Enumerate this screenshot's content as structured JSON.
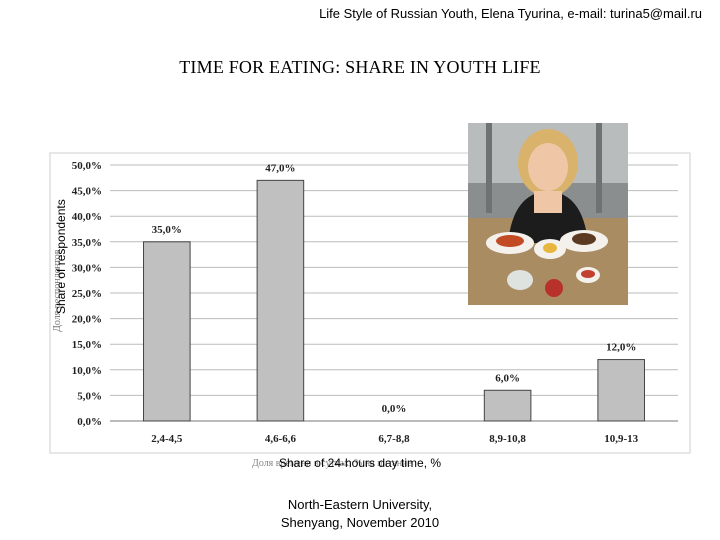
{
  "header": {
    "text": "Life Style of Russian Youth, Elena Tyurina, e-mail: turina5@mail.ru"
  },
  "title": "TIME FOR EATING: SHARE IN YOUTH LIFE",
  "footer": {
    "line1": "North-Eastern University,",
    "line2": "Shenyang, November 2010"
  },
  "photo": {
    "icon": "woman-with-plates-photo"
  },
  "chart_data": {
    "type": "bar",
    "categories": [
      "2,4-4,5",
      "4,6-6,6",
      "6,7-8,8",
      "8,9-10,8",
      "10,9-13"
    ],
    "values": [
      35.0,
      47.0,
      0.0,
      6.0,
      12.0
    ],
    "data_labels": [
      "35,0%",
      "47,0%",
      "0,0%",
      "6,0%",
      "12,0%"
    ],
    "y_ticks": [
      "0,0%",
      "5,0%",
      "10,0%",
      "15,0%",
      "20,0%",
      "25,0%",
      "30,0%",
      "35,0%",
      "40,0%",
      "45,0%",
      "50,0%"
    ],
    "ylim": [
      0,
      50
    ],
    "xlabel": "Share of 24-hours day time, %",
    "xlabel_original": "Доля времени в сутках, % на питание",
    "ylabel": "Share of respondents",
    "ylabel_original": "Доля респондентов",
    "grid": true,
    "colors": {
      "bar": "#c0c0c0",
      "bar_edge": "#444444",
      "grid": "#bbbbbb",
      "axis": "#777777"
    }
  }
}
